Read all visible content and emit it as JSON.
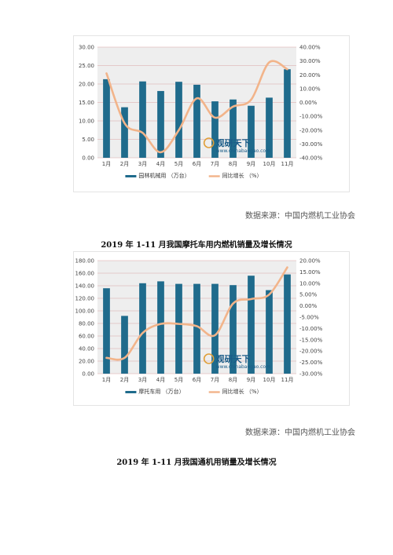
{
  "watermark": {
    "brand": "观研天下",
    "site": "www.chinabaogao.com"
  },
  "sources": [
    "数据来源：中国内燃机工业协会",
    "数据来源：中国内燃机工业协会"
  ],
  "captions": [
    "2019 年 1-11 月我国摩托车用内燃机销量及增长情况",
    "2019 年 1-11 月我国通机用销量及增长情况"
  ],
  "colors": {
    "bar": "#1f6b8c",
    "line": "#f2b48a",
    "grid": "#d9a4a4",
    "plot_bg": "#eeeeee"
  },
  "chart_data": [
    {
      "type": "bar",
      "categories": [
        "1月",
        "2月",
        "3月",
        "4月",
        "5月",
        "6月",
        "7月",
        "8月",
        "9月",
        "10月",
        "11月"
      ],
      "series": [
        {
          "name": "园林机械用 （万台）",
          "type": "bar",
          "axis": "left",
          "values": [
            21.3,
            13.7,
            20.7,
            18.1,
            20.6,
            19.8,
            15.3,
            15.8,
            14.1,
            16.3,
            24.0
          ]
        },
        {
          "name": "同比增长 （%）",
          "type": "line",
          "axis": "right",
          "values": [
            21,
            -15,
            -22,
            -36,
            -20,
            3,
            -11,
            -3,
            2,
            29,
            24
          ]
        }
      ],
      "y_left": {
        "min": 0,
        "max": 30,
        "step": 5,
        "ticks": [
          "0.00",
          "5.00",
          "10.00",
          "15.00",
          "20.00",
          "25.00",
          "30.00"
        ]
      },
      "y_right": {
        "min": -40,
        "max": 40,
        "step": 10,
        "ticks": [
          "-40.00%",
          "-30.00%",
          "-20.00%",
          "-10.00%",
          "0.00%",
          "10.00%",
          "20.00%",
          "30.00%",
          "40.00%"
        ]
      },
      "grid": true,
      "legend": "bottom"
    },
    {
      "type": "bar",
      "categories": [
        "1月",
        "2月",
        "3月",
        "4月",
        "5月",
        "6月",
        "7月",
        "8月",
        "9月",
        "10月",
        "11月"
      ],
      "series": [
        {
          "name": "摩托车用 （万台）",
          "type": "bar",
          "axis": "left",
          "values": [
            136,
            92,
            144,
            147,
            143,
            143,
            143,
            141,
            156,
            133,
            158
          ]
        },
        {
          "name": "同比增长 （%）",
          "type": "line",
          "axis": "right",
          "values": [
            -23,
            -23,
            -12,
            -8,
            -8,
            -9,
            -13,
            1,
            3,
            5,
            17
          ]
        }
      ],
      "y_left": {
        "min": 0,
        "max": 180,
        "step": 20,
        "ticks": [
          "0.00",
          "20.00",
          "40.00",
          "60.00",
          "80.00",
          "100.00",
          "120.00",
          "140.00",
          "160.00",
          "180.00"
        ]
      },
      "y_right": {
        "min": -30,
        "max": 20,
        "step": 5,
        "ticks": [
          "-30.00%",
          "-25.00%",
          "-20.00%",
          "-15.00%",
          "-10.00%",
          "-5.00%",
          "0.00%",
          "5.00%",
          "10.00%",
          "15.00%",
          "20.00%"
        ]
      },
      "grid": true,
      "legend": "bottom"
    }
  ]
}
